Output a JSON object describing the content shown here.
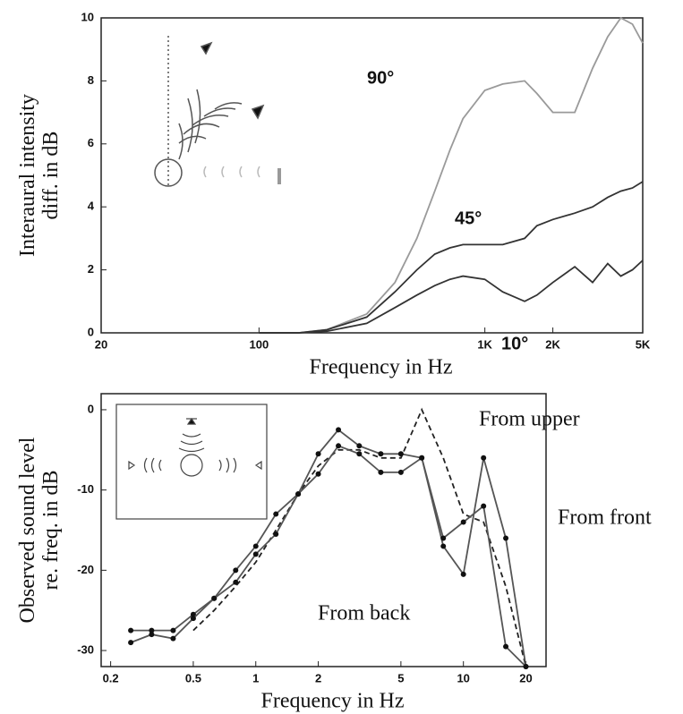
{
  "chart_data": [
    {
      "type": "line",
      "log_x": true,
      "ylabel": [
        "Interaural intensity",
        "diff. in dB"
      ],
      "xlabel": "Frequency in Hz",
      "x": [
        100,
        150,
        200,
        300,
        400,
        500,
        600,
        700,
        800,
        1000,
        1200,
        1500,
        1700,
        2000,
        2500,
        3000,
        3500,
        4000,
        4500,
        5000
      ],
      "xlim": [
        20,
        5000
      ],
      "xticks": [
        20,
        100,
        {
          "value": 1000,
          "label": "1K"
        },
        {
          "value": 2000,
          "label": "2K"
        },
        {
          "value": 5000,
          "label": "5K"
        }
      ],
      "ylim": [
        0,
        10
      ],
      "yticks": [
        0,
        2,
        4,
        6,
        8,
        10
      ],
      "series": [
        {
          "name": "90°",
          "color": "#9a9a9a",
          "values": [
            0,
            0,
            0.1,
            0.6,
            1.6,
            3,
            4.5,
            5.8,
            6.8,
            7.7,
            7.9,
            8,
            7.6,
            7,
            7,
            8.4,
            9.4,
            10,
            9.8,
            9.2
          ]
        },
        {
          "name": "45°",
          "color": "#333333",
          "values": [
            0,
            0,
            0.1,
            0.5,
            1.3,
            2,
            2.5,
            2.7,
            2.8,
            2.8,
            2.8,
            3,
            3.4,
            3.6,
            3.8,
            4,
            4.3,
            4.5,
            4.6,
            4.8
          ]
        },
        {
          "name": "10°",
          "color": "#333333",
          "values": [
            0,
            0,
            0.05,
            0.3,
            0.8,
            1.2,
            1.5,
            1.7,
            1.8,
            1.7,
            1.3,
            1,
            1.2,
            1.6,
            2.1,
            1.6,
            2.2,
            1.8,
            2,
            2.3
          ]
        }
      ]
    },
    {
      "type": "line",
      "log_x": true,
      "markers": true,
      "ylabel": [
        "Observed sound level",
        "re. freq. in dB"
      ],
      "xlabel": "Frequency in Hz",
      "x": [
        0.25,
        0.315,
        0.4,
        0.5,
        0.63,
        0.8,
        1,
        1.25,
        1.6,
        2,
        2.5,
        3.15,
        4,
        5,
        6.3,
        8,
        10,
        12.5,
        16,
        20
      ],
      "xlim": [
        0.18,
        25
      ],
      "xticks": [
        0.2,
        0.5,
        1,
        2,
        5,
        10,
        20
      ],
      "ylim": [
        -32,
        2
      ],
      "yticks": [
        0,
        -10,
        -20,
        -30
      ],
      "series": [
        {
          "name": "From upper",
          "color": "#222222",
          "dashed": true,
          "values": [
            null,
            null,
            null,
            -27.5,
            -25,
            -22,
            -19,
            -15,
            -10.5,
            -7,
            -5,
            -5,
            -6,
            -6,
            0,
            -6,
            -13,
            -14,
            -22,
            -32
          ]
        },
        {
          "name": "From front",
          "color": "#555555",
          "values": [
            -27.5,
            -27.5,
            -27.5,
            -25.5,
            -23.5,
            -21.5,
            -18,
            -15.5,
            -10.5,
            -8,
            -4.5,
            -5.5,
            -7.8,
            -7.8,
            -6,
            -17,
            -20.5,
            -6,
            -16,
            -32
          ]
        },
        {
          "name": "From back",
          "color": "#555555",
          "values": [
            -29,
            -28,
            -28.5,
            -26,
            -23.5,
            -20,
            -17,
            -13,
            -10.5,
            -5.5,
            -2.5,
            -4.5,
            -5.5,
            -5.5,
            -6,
            -16,
            -14,
            -12,
            -29.5,
            -32
          ]
        }
      ]
    }
  ]
}
